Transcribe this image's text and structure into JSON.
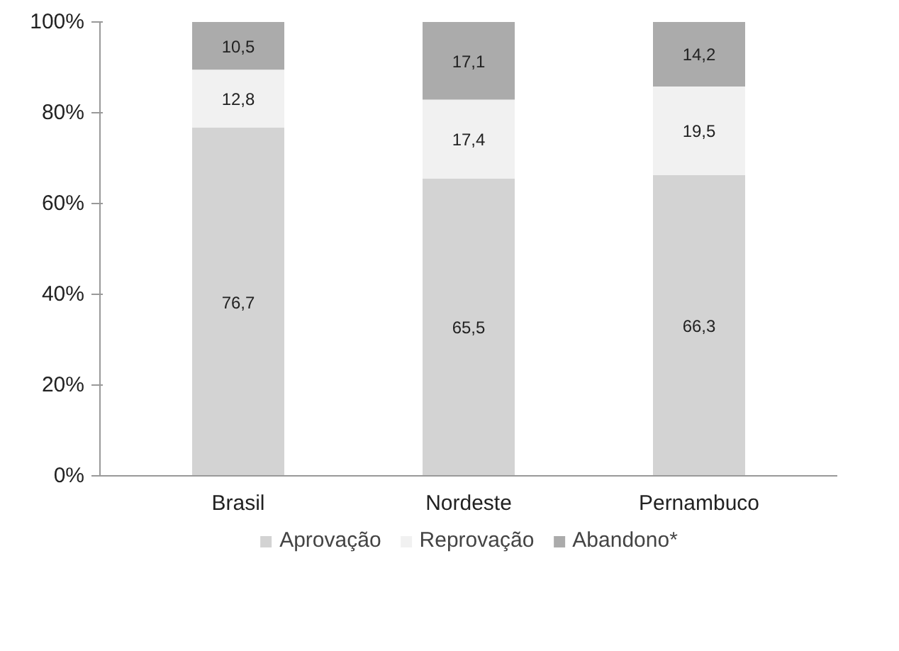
{
  "chart_data": {
    "type": "bar",
    "stacked": true,
    "categories": [
      "Brasil",
      "Nordeste",
      "Pernambuco"
    ],
    "series": [
      {
        "name": "Aprovação",
        "color": "#d3d3d3",
        "values": [
          76.7,
          65.5,
          66.3
        ],
        "value_labels": [
          "76,7",
          "65,5",
          "66,3"
        ]
      },
      {
        "name": "Reprovação",
        "color": "#f1f1f1",
        "values": [
          12.8,
          17.4,
          19.5
        ],
        "value_labels": [
          "12,8",
          "17,4",
          "19,5"
        ]
      },
      {
        "name": "Abandono*",
        "color": "#ababab",
        "values": [
          10.5,
          17.1,
          14.2
        ],
        "value_labels": [
          "10,5",
          "17,1",
          "14,2"
        ]
      }
    ],
    "ylim": [
      0,
      100
    ],
    "yticks": [
      {
        "value": 0,
        "label": "0%"
      },
      {
        "value": 20,
        "label": "20%"
      },
      {
        "value": 40,
        "label": "40%"
      },
      {
        "value": 60,
        "label": "60%"
      },
      {
        "value": 80,
        "label": "80%"
      },
      {
        "value": 100,
        "label": "100%"
      }
    ],
    "grid": false,
    "legend": "bottom"
  }
}
